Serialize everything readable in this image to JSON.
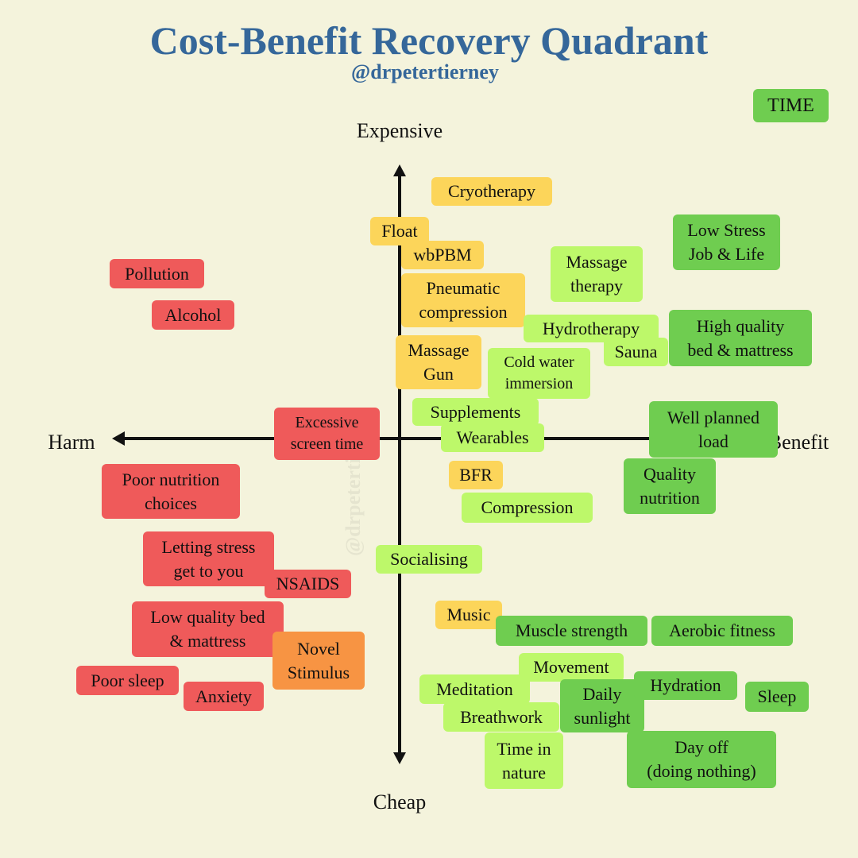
{
  "header": {
    "title": "Cost-Benefit Recovery Quadrant",
    "subtitle": "@drpetertierney"
  },
  "axes": {
    "top": "Expensive",
    "bottom": "Cheap",
    "left": "Harm",
    "right": "Benefit"
  },
  "watermark": "@drpetertierney",
  "items": [
    "TIME",
    "Cryotherapy",
    "Float",
    "wbPBM",
    "Pneumatic\ncompression",
    "Massage\nGun",
    "Massage\ntherapy",
    "Low Stress\nJob & Life",
    "Hydrotherapy",
    "Sauna",
    "High quality\nbed & mattress",
    "Cold water\nimmersion",
    "Supplements",
    "Wearables",
    "Well planned\nload",
    "Quality\nnutrition",
    "BFR",
    "Compression",
    "Socialising",
    "Music",
    "Muscle strength",
    "Aerobic fitness",
    "Movement",
    "Meditation",
    "Daily\nsunlight",
    "Hydration",
    "Sleep",
    "Breathwork",
    "Time in\nnature",
    "Day off\n(doing nothing)",
    "Pollution",
    "Alcohol",
    "Excessive\nscreen time",
    "Poor nutrition\nchoices",
    "Letting stress\nget to you",
    "NSAIDS",
    "Low quality bed\n& mattress",
    "Novel\nStimulus",
    "Poor sleep",
    "Anxiety"
  ]
}
